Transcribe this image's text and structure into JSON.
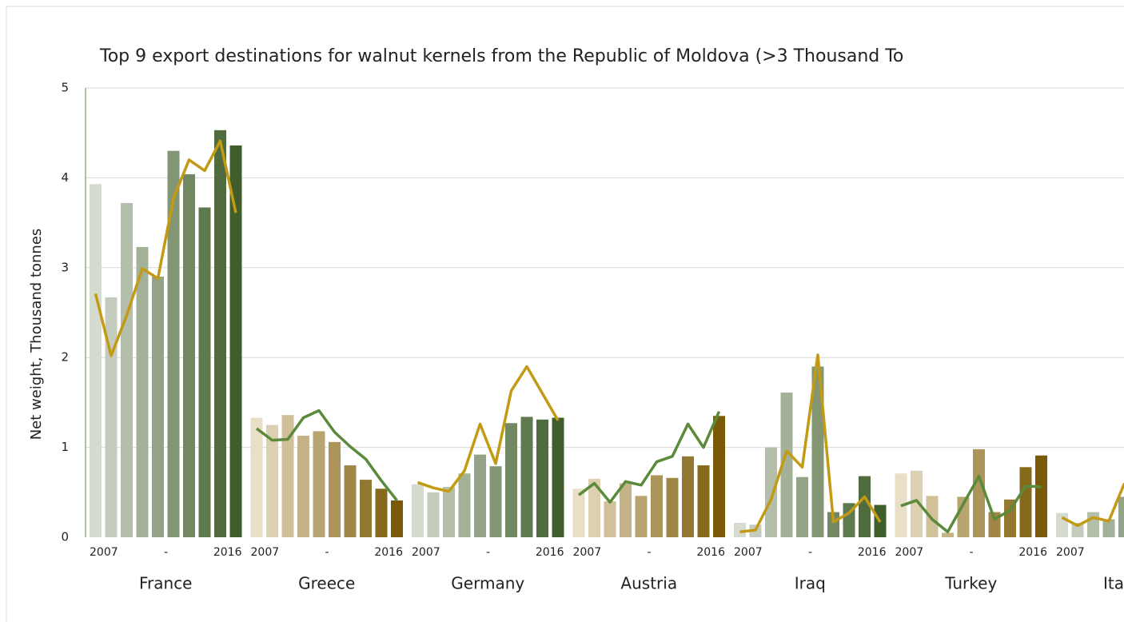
{
  "chart_data": {
    "type": "grouped_bar_line",
    "title": "Top 9 export destinations for walnut kernels from the Republic of Moldova (>3 Thousand To",
    "ylabel": "Net weight, Thousand tonnes",
    "ylim": [
      0,
      5
    ],
    "yticks": [
      0,
      1,
      2,
      3,
      4,
      5
    ],
    "grid": true,
    "categories": [
      "2007",
      null,
      null,
      null,
      null,
      "-",
      null,
      null,
      null,
      "2016"
    ],
    "groups": [
      {
        "name": "France",
        "bar_colors": [
          "#d5dbcf",
          "#3f5e2c"
        ],
        "line_color": "#c39a14",
        "values": [
          3.93,
          2.67,
          3.72,
          3.23,
          2.9,
          4.3,
          4.04,
          3.67,
          4.53,
          4.36
        ],
        "line": [
          2.71,
          2.02,
          2.47,
          2.99,
          2.88,
          3.77,
          4.2,
          4.08,
          4.41,
          3.61
        ]
      },
      {
        "name": "Greece",
        "bar_colors": [
          "#e8dfc6",
          "#7a5a06"
        ],
        "line_color": "#5a8a3a",
        "values": [
          1.33,
          1.25,
          1.36,
          1.13,
          1.18,
          1.06,
          0.8,
          0.64,
          0.54,
          0.41
        ],
        "line": [
          1.21,
          1.08,
          1.09,
          1.33,
          1.41,
          1.17,
          1.01,
          0.87,
          0.63,
          0.41
        ]
      },
      {
        "name": "Germany",
        "bar_colors": [
          "#d5dbcf",
          "#3f5e2c"
        ],
        "line_color": "#c39a14",
        "values": [
          0.59,
          0.5,
          0.56,
          0.71,
          0.92,
          0.79,
          1.27,
          1.34,
          1.31,
          1.33
        ],
        "line": [
          0.61,
          0.55,
          0.51,
          0.74,
          1.26,
          0.82,
          1.63,
          1.9,
          1.6,
          1.3
        ]
      },
      {
        "name": "Austria",
        "bar_colors": [
          "#e8dfc6",
          "#7a5a06"
        ],
        "line_color": "#5a8a3a",
        "values": [
          0.54,
          0.65,
          0.4,
          0.6,
          0.46,
          0.69,
          0.66,
          0.9,
          0.8,
          1.35
        ],
        "line": [
          0.47,
          0.6,
          0.39,
          0.62,
          0.58,
          0.84,
          0.9,
          1.26,
          1.0,
          1.4
        ]
      },
      {
        "name": "Iraq",
        "bar_colors": [
          "#d5dbcf",
          "#3f5e2c"
        ],
        "line_color": "#c39a14",
        "values": [
          0.16,
          0.14,
          1.0,
          1.61,
          0.67,
          1.9,
          0.28,
          0.38,
          0.68,
          0.36
        ],
        "line": [
          0.06,
          0.08,
          0.42,
          0.96,
          0.78,
          2.03,
          0.17,
          0.27,
          0.45,
          0.17
        ]
      },
      {
        "name": "Turkey",
        "bar_colors": [
          "#e8dfc6",
          "#7a5a06"
        ],
        "line_color": "#5a8a3a",
        "values": [
          0.71,
          0.74,
          0.46,
          0.05,
          0.45,
          0.98,
          0.28,
          0.42,
          0.78,
          0.91
        ],
        "line": [
          0.35,
          0.41,
          0.2,
          0.06,
          0.37,
          0.68,
          0.2,
          0.3,
          0.57,
          0.56
        ]
      },
      {
        "name": "Ita",
        "bar_colors": [
          "#d5dbcf",
          "#3f5e2c"
        ],
        "line_color": "#c39a14",
        "values": [
          0.27,
          0.16,
          0.28,
          0.2,
          0.45,
          null,
          null,
          null,
          null,
          null
        ],
        "line": [
          0.22,
          0.13,
          0.22,
          0.18,
          0.6,
          null,
          null,
          null,
          null,
          null
        ]
      }
    ]
  }
}
